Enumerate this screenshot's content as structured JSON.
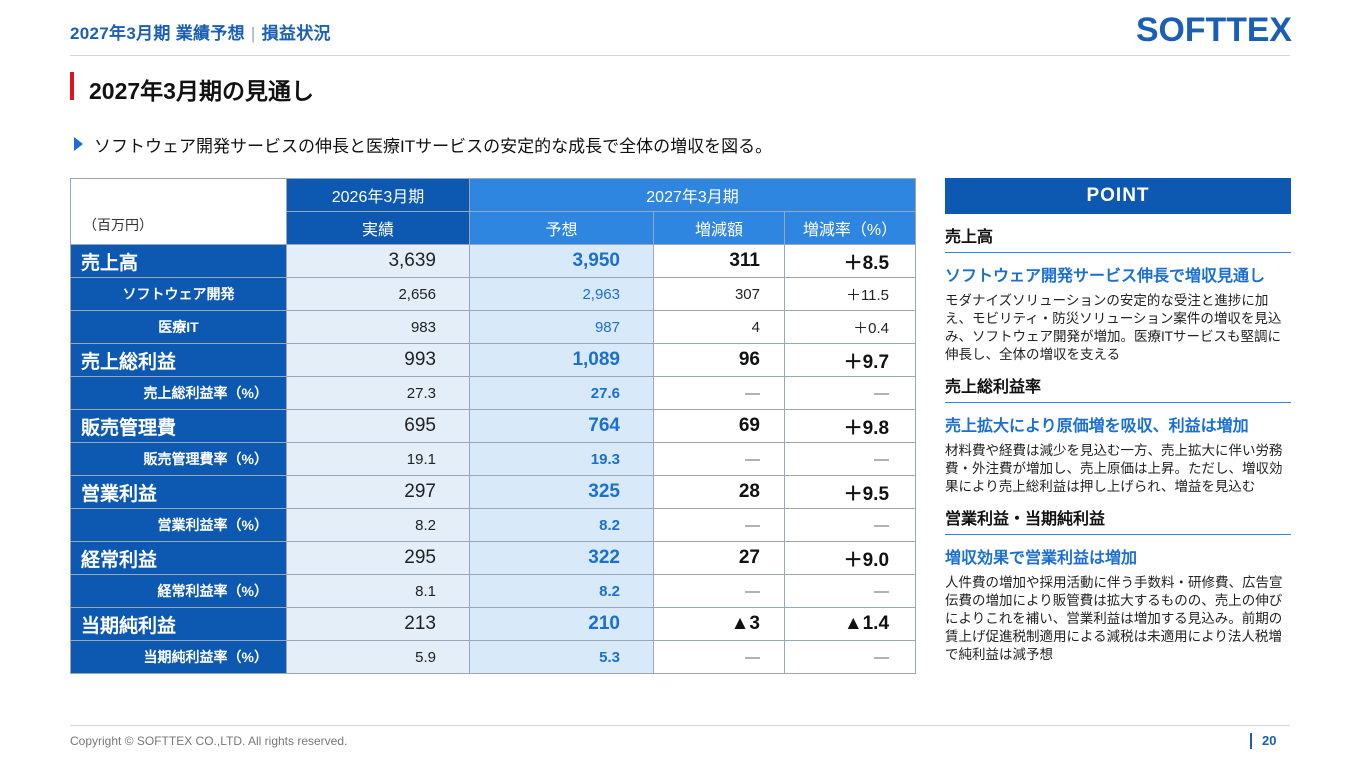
{
  "header": {
    "title": "2027年3月期 業績予想",
    "separator": "|",
    "subtitle": "損益状況",
    "logo_text": "SOFTTEX"
  },
  "section": {
    "title": "2027年3月期の見通し",
    "lead": "ソフトウェア開発サービスの伸長と医療ITサービスの安定的な成長で全体の増収を図る。"
  },
  "table": {
    "unit": "（百万円）",
    "period_prev": "2026年3月期",
    "period_next": "2027年3月期",
    "col_actual": "実績",
    "col_forecast": "予想",
    "col_change": "増減額",
    "col_change_rate": "増減率（%）",
    "rows": [
      {
        "label": "売上高",
        "actual": "3,639",
        "forecast": "3,950",
        "change": "311",
        "rate": "＋8.5"
      },
      {
        "label": "ソフトウェア開発",
        "actual": "2,656",
        "forecast": "2,963",
        "change": "307",
        "rate": "＋11.5"
      },
      {
        "label": "医療IT",
        "actual": "983",
        "forecast": "987",
        "change": "4",
        "rate": "＋0.4"
      },
      {
        "label": "売上総利益",
        "actual": "993",
        "forecast": "1,089",
        "change": "96",
        "rate": "＋9.7"
      },
      {
        "label": "売上総利益率（%）",
        "actual": "27.3",
        "forecast": "27.6",
        "change": "―",
        "rate": "―"
      },
      {
        "label": "販売管理費",
        "actual": "695",
        "forecast": "764",
        "change": "69",
        "rate": "＋9.8"
      },
      {
        "label": "販売管理費率（%）",
        "actual": "19.1",
        "forecast": "19.3",
        "change": "―",
        "rate": "―"
      },
      {
        "label": "営業利益",
        "actual": "297",
        "forecast": "325",
        "change": "28",
        "rate": "＋9.5"
      },
      {
        "label": "営業利益率（%）",
        "actual": "8.2",
        "forecast": "8.2",
        "change": "―",
        "rate": "―"
      },
      {
        "label": "経常利益",
        "actual": "295",
        "forecast": "322",
        "change": "27",
        "rate": "＋9.0"
      },
      {
        "label": "経常利益率（%）",
        "actual": "8.1",
        "forecast": "8.2",
        "change": "―",
        "rate": "―"
      },
      {
        "label": "当期純利益",
        "actual": "213",
        "forecast": "210",
        "change": "▲3",
        "rate": "▲1.4"
      },
      {
        "label": "当期純利益率（%）",
        "actual": "5.9",
        "forecast": "5.3",
        "change": "―",
        "rate": "―"
      }
    ]
  },
  "point": {
    "header": "POINT",
    "blocks": [
      {
        "category": "売上高",
        "headline": "ソフトウェア開発サービス伸長で増収見通し",
        "body": "モダナイズソリューションの安定的な受注と進捗に加え、モビリティ・防災ソリューション案件の増収を見込み、ソフトウェア開発が増加。医療ITサービスも堅調に伸長し、全体の増収を支える"
      },
      {
        "category": "売上総利益率",
        "headline": "売上拡大により原価増を吸収、利益は増加",
        "body": "材料費や経費は減少を見込む一方、売上拡大に伴い労務費・外注費が増加し、売上原価は上昇。ただし、増収効果により売上総利益は押し上げられ、増益を見込む"
      },
      {
        "category": "営業利益・当期純利益",
        "headline": "増収効果で営業利益は増加",
        "body": "人件費の増加や採用活動に伴う手数料・研修費、広告宣伝費の増加により販管費は拡大するものの、売上の伸びによりこれを補い、営業利益は増加する見込み。前期の賃上げ促進税制適用による減税は未適用により法人税増で純利益は減予想"
      }
    ]
  },
  "footer": {
    "copyright": "Copyright © SOFTTEX CO.,LTD. All rights reserved.",
    "page": "20"
  },
  "colors": {
    "primary": "#0d58b0",
    "accent": "#2f86e0",
    "forecast_text": "#1b6fd1",
    "section_marker": "#e0141e"
  }
}
